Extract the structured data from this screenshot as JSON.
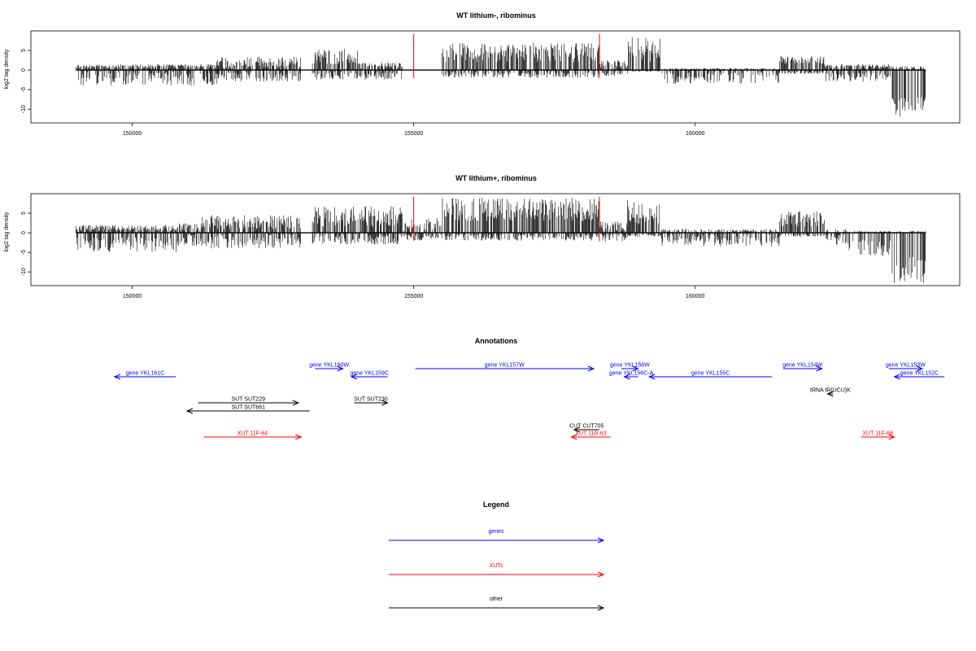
{
  "chart_data": [
    {
      "type": "bar",
      "title": "WT lithium-, ribominus",
      "ylabel": "log2 tag density",
      "xlabel": "",
      "xlim": [
        148200,
        164700
      ],
      "ylim": [
        -13.5,
        10
      ],
      "x_ticks": [
        150000,
        155000,
        160000
      ],
      "y_ticks": [
        5,
        0,
        -5,
        -10
      ],
      "grid": false,
      "markers": {
        "color": "#ff0000",
        "x": [
          155000,
          158300
        ]
      },
      "segments": [
        {
          "from": 149000,
          "to": 151500,
          "pos": [
            0.5,
            1.5
          ],
          "neg": [
            0.5,
            4
          ]
        },
        {
          "from": 151500,
          "to": 153000,
          "pos": [
            0.5,
            3.5
          ],
          "neg": [
            0.5,
            3
          ]
        },
        {
          "from": 153200,
          "to": 154000,
          "pos": [
            1.5,
            5.5
          ],
          "neg": [
            0.5,
            2.5
          ]
        },
        {
          "from": 154000,
          "to": 154800,
          "pos": [
            0.5,
            2
          ],
          "neg": [
            0.5,
            2.5
          ]
        },
        {
          "from": 155500,
          "to": 158300,
          "pos": [
            2,
            7
          ],
          "neg": [
            0.5,
            2
          ]
        },
        {
          "from": 158300,
          "to": 158800,
          "pos": [
            0.5,
            2.5
          ],
          "neg": [
            0.5,
            1.5
          ]
        },
        {
          "from": 158800,
          "to": 159400,
          "pos": [
            2,
            8.5
          ],
          "neg": [
            0,
            0.5
          ]
        },
        {
          "from": 159400,
          "to": 161500,
          "pos": [
            0,
            0.5
          ],
          "neg": [
            0.5,
            3.5
          ]
        },
        {
          "from": 161500,
          "to": 162300,
          "pos": [
            1.5,
            3.5
          ],
          "neg": [
            0.5,
            1
          ]
        },
        {
          "from": 162300,
          "to": 163500,
          "pos": [
            0.5,
            1.5
          ],
          "neg": [
            0.5,
            3
          ]
        },
        {
          "from": 163500,
          "to": 164100,
          "pos": [
            0,
            1
          ],
          "neg": [
            7,
            12
          ]
        }
      ]
    },
    {
      "type": "bar",
      "title": "WT lithium+, ribominus",
      "ylabel": "log2 tag density",
      "xlabel": "",
      "xlim": [
        148200,
        164700
      ],
      "ylim": [
        -13.5,
        10
      ],
      "x_ticks": [
        150000,
        155000,
        160000
      ],
      "y_ticks": [
        5,
        0,
        -5,
        -10
      ],
      "grid": false,
      "markers": {
        "color": "#ff0000",
        "x": [
          155000,
          158300
        ]
      },
      "segments": [
        {
          "from": 149000,
          "to": 150800,
          "pos": [
            0.5,
            2
          ],
          "neg": [
            1,
            5
          ]
        },
        {
          "from": 150800,
          "to": 151200,
          "pos": [
            0.5,
            2.5
          ],
          "neg": [
            0.5,
            3.5
          ]
        },
        {
          "from": 151200,
          "to": 153000,
          "pos": [
            1,
            4.5
          ],
          "neg": [
            0.5,
            4
          ]
        },
        {
          "from": 153200,
          "to": 154800,
          "pos": [
            1.5,
            7
          ],
          "neg": [
            0.5,
            3
          ]
        },
        {
          "from": 154800,
          "to": 155500,
          "pos": [
            0.5,
            4
          ],
          "neg": [
            0.5,
            2
          ]
        },
        {
          "from": 155500,
          "to": 158300,
          "pos": [
            3,
            9
          ],
          "neg": [
            0.5,
            2
          ]
        },
        {
          "from": 158300,
          "to": 158800,
          "pos": [
            0.5,
            3
          ],
          "neg": [
            0.5,
            2.5
          ]
        },
        {
          "from": 158800,
          "to": 159400,
          "pos": [
            2,
            8.5
          ],
          "neg": [
            0.5,
            1
          ]
        },
        {
          "from": 159400,
          "to": 161500,
          "pos": [
            0,
            1
          ],
          "neg": [
            0.5,
            3.5
          ]
        },
        {
          "from": 161500,
          "to": 162300,
          "pos": [
            1.5,
            5.5
          ],
          "neg": [
            0.5,
            1
          ]
        },
        {
          "from": 162300,
          "to": 162700,
          "pos": [
            0,
            1
          ],
          "neg": [
            0.5,
            3
          ]
        },
        {
          "from": 162700,
          "to": 163500,
          "pos": [
            0,
            0.5
          ],
          "neg": [
            1.5,
            6
          ]
        },
        {
          "from": 163500,
          "to": 164100,
          "pos": [
            0,
            0.5
          ],
          "neg": [
            6,
            13
          ]
        }
      ]
    }
  ],
  "annotations": {
    "title": "Annotations",
    "colors": {
      "genes": "#0000ff",
      "xuts": "#ff0000",
      "other": "#000000"
    },
    "features": [
      {
        "label": "gene YKL161C",
        "kind": "genes",
        "strand": "-",
        "start": 149600,
        "end": 150700,
        "row": 1
      },
      {
        "label": "gene YKL160W",
        "kind": "genes",
        "strand": "+",
        "start": 153200,
        "end": 153700,
        "row": 0
      },
      {
        "label": "gene YKL159C",
        "kind": "genes",
        "strand": "-",
        "start": 153850,
        "end": 154500,
        "row": 1
      },
      {
        "label": "gene YKL157W",
        "kind": "genes",
        "strand": "+",
        "start": 155000,
        "end": 158200,
        "row": 0
      },
      {
        "label": "gene YKL156W",
        "kind": "genes",
        "strand": "+",
        "start": 158700,
        "end": 159000,
        "row": 0
      },
      {
        "label": "gene YKL156C-A",
        "kind": "genes",
        "strand": "-",
        "start": 158750,
        "end": 159000,
        "row": 1
      },
      {
        "label": "gene YKL155C",
        "kind": "genes",
        "strand": "-",
        "start": 159200,
        "end": 161400,
        "row": 1
      },
      {
        "label": "gene YKL154W",
        "kind": "genes",
        "strand": "+",
        "start": 161600,
        "end": 162300,
        "row": 0
      },
      {
        "label": "gene YKL153W",
        "kind": "genes",
        "strand": "+",
        "start": 163500,
        "end": 164100,
        "row": 0
      },
      {
        "label": "gene YKL152C",
        "kind": "genes",
        "strand": "-",
        "start": 163600,
        "end": 164500,
        "row": 1
      },
      {
        "label": "tRNA tR(UCU)K",
        "kind": "other",
        "strand": "-",
        "start": 162400,
        "end": 162500,
        "row": 2
      },
      {
        "label": "SUT SUT229",
        "kind": "other",
        "strand": "+",
        "start": 151100,
        "end": 152900,
        "row": 3
      },
      {
        "label": "SUT SUT661",
        "kind": "other",
        "strand": "-",
        "start": 150900,
        "end": 153100,
        "row": 4
      },
      {
        "label": "SUT SUT230",
        "kind": "other",
        "strand": "+",
        "start": 153900,
        "end": 154500,
        "row": 3
      },
      {
        "label": "CUT CUT705",
        "kind": "other",
        "strand": "-",
        "start": 157850,
        "end": 158300,
        "row": 5
      },
      {
        "label": "XUT 11F-64",
        "kind": "xuts",
        "strand": "+",
        "start": 151200,
        "end": 152950,
        "row": 6
      },
      {
        "label": "XUT 11R-63",
        "kind": "xuts",
        "strand": "-",
        "start": 157800,
        "end": 158500,
        "row": 6
      },
      {
        "label": "XUT 11F-68",
        "kind": "xuts",
        "strand": "+",
        "start": 163000,
        "end": 163600,
        "row": 6
      }
    ]
  },
  "legend": {
    "title": "Legend",
    "items": [
      {
        "label": "genes",
        "kind": "genes"
      },
      {
        "label": "XUTs",
        "kind": "xuts"
      },
      {
        "label": "other",
        "kind": "other"
      }
    ]
  }
}
